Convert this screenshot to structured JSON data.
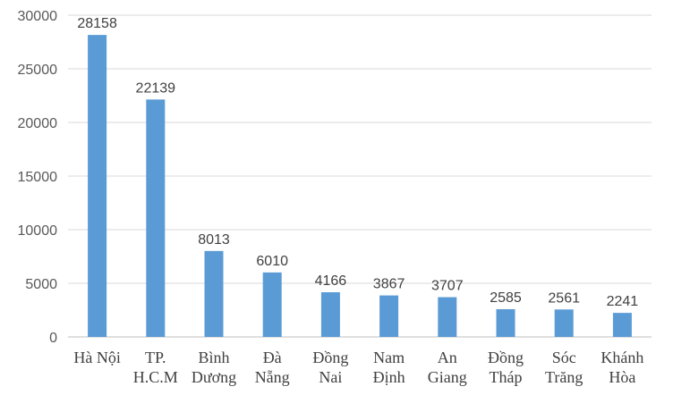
{
  "chart_data": {
    "type": "bar",
    "categories": [
      [
        "Hà Nội"
      ],
      [
        "TP.",
        "H.C.M"
      ],
      [
        "Bình",
        "Dương"
      ],
      [
        "Đà",
        "Nẵng"
      ],
      [
        "Đồng",
        "Nai"
      ],
      [
        "Nam",
        "Định"
      ],
      [
        "An",
        "Giang"
      ],
      [
        "Đồng",
        "Tháp"
      ],
      [
        "Sóc",
        "Trăng"
      ],
      [
        "Khánh",
        "Hòa"
      ]
    ],
    "values": [
      28158,
      22139,
      8013,
      6010,
      4166,
      3867,
      3707,
      2585,
      2561,
      2241
    ],
    "data_labels": [
      "28158",
      "22139",
      "8013",
      "6010",
      "4166",
      "3867",
      "3707",
      "2585",
      "2561",
      "2241"
    ],
    "y_ticks": [
      0,
      5000,
      10000,
      15000,
      20000,
      25000,
      30000
    ],
    "y_tick_labels": [
      "0",
      "5000",
      "10000",
      "15000",
      "20000",
      "25000",
      "30000"
    ],
    "ylim": [
      0,
      30000
    ],
    "grid": true,
    "legend": "none",
    "bar_color": "#5b9bd5",
    "grid_color": "#d9d9d9"
  }
}
